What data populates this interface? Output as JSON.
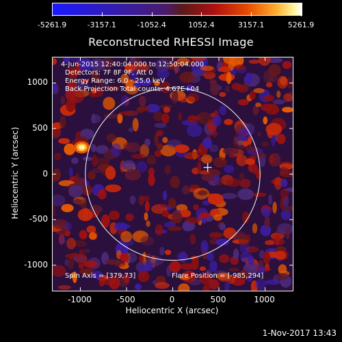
{
  "colorbar": {
    "ticks": [
      "-5261.9",
      "-3157.1",
      "-1052.4",
      "1052.4",
      "3157.1",
      "5261.9"
    ],
    "min": -5261.9,
    "max": 5261.9,
    "colors": [
      "#1a1aff",
      "#3a1d9e",
      "#5a1a1a",
      "#b01010",
      "#ffb030",
      "#ffffff"
    ]
  },
  "chart_data": {
    "type": "heatmap",
    "title": "Reconstructed RHESSI Image",
    "xlabel": "Heliocentric X (arcsec)",
    "ylabel": "Heliocentric Y (arcsec)",
    "xlim": [
      -1300,
      1300
    ],
    "ylim": [
      -1280,
      1280
    ],
    "xticks": [
      "-1000",
      "-500",
      "0",
      "500",
      "1000"
    ],
    "yticks": [
      "1000",
      "500",
      "0",
      "-500",
      "-1000"
    ],
    "annotations": [
      "4-Jun-2015 12:40:04.000 to 12:50:04.000",
      "Detectors: 7F 8F 9F, Att 0",
      "Energy Range: 6.0 - 25.0 keV",
      "Back Projection      Total counts: 4.67E+04"
    ],
    "spin_axis": "Spin Axis = [379,73]",
    "flare_position": "Flare Position = [-985,294]",
    "solar_disk_radius": 946,
    "sun_center": [
      0,
      0
    ],
    "marker_position": [
      379,
      73
    ],
    "hotspot": [
      -985,
      294
    ]
  },
  "footer": {
    "date": "1-Nov-2017 13:43"
  }
}
